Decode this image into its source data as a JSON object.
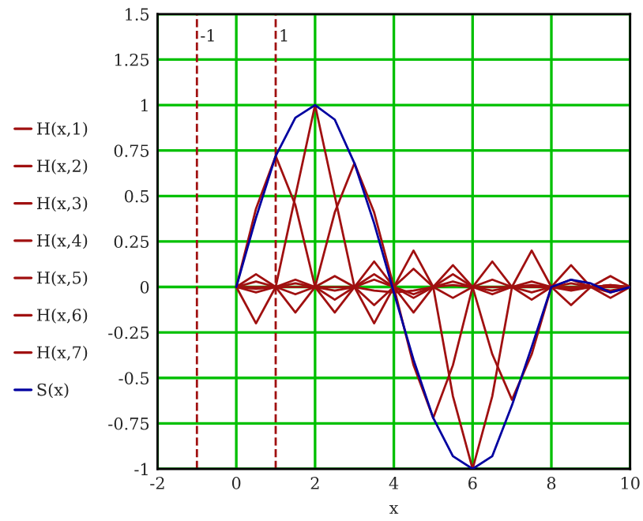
{
  "chart_data": {
    "type": "line",
    "xlabel": "x",
    "x": [
      0,
      0.5,
      1,
      1.5,
      2,
      2.5,
      3,
      3.5,
      4,
      4.5,
      5,
      5.5,
      6,
      6.5,
      7,
      7.5,
      8,
      8.5,
      9,
      9.5,
      10
    ],
    "series": [
      {
        "name": "H(x,1)",
        "color": "#a01010",
        "values": [
          0,
          0.43,
          0.72,
          0.45,
          0,
          -0.14,
          0,
          0.07,
          0,
          -0.04,
          0,
          0.03,
          0,
          -0.02,
          0,
          0.01,
          0,
          -0.01,
          0,
          0.01,
          0
        ]
      },
      {
        "name": "H(x,2)",
        "color": "#a01010",
        "values": [
          0,
          -0.2,
          0,
          0.5,
          1,
          0.5,
          0,
          -0.2,
          0,
          0.1,
          0,
          -0.06,
          0,
          0.04,
          0,
          -0.03,
          0,
          0.02,
          0,
          -0.02,
          0
        ]
      },
      {
        "name": "H(x,3)",
        "color": "#a01010",
        "values": [
          0,
          0.07,
          0,
          -0.14,
          0,
          0.41,
          0.68,
          0.41,
          0,
          -0.14,
          0,
          0.07,
          0,
          -0.04,
          0,
          0.03,
          0,
          -0.02,
          0,
          0.01,
          0
        ]
      },
      {
        "name": "H(x,4)",
        "color": "#a01010",
        "values": [
          0,
          0,
          0,
          0,
          0,
          0,
          0,
          -0.02,
          -0.03,
          -0.02,
          0,
          0.01,
          0,
          0,
          0,
          0,
          0,
          0,
          0,
          0,
          0
        ]
      },
      {
        "name": "H(x,5)",
        "color": "#a01010",
        "values": [
          0,
          -0.03,
          0,
          0.04,
          0,
          -0.07,
          0,
          0.14,
          0,
          -0.43,
          -0.72,
          -0.43,
          0,
          0.14,
          0,
          -0.07,
          0,
          0.04,
          0,
          -0.03,
          0
        ]
      },
      {
        "name": "H(x,6)",
        "color": "#a01010",
        "values": [
          0,
          0.03,
          0,
          -0.04,
          0,
          0.06,
          0,
          -0.1,
          0,
          0.2,
          0,
          -0.6,
          -1,
          -0.6,
          0,
          0.2,
          0,
          -0.1,
          0,
          0.06,
          0
        ]
      },
      {
        "name": "H(x,7)",
        "color": "#a01010",
        "values": [
          0,
          -0.01,
          0,
          0.02,
          0,
          -0.02,
          0,
          0.04,
          0,
          -0.06,
          0,
          0.12,
          0,
          -0.37,
          -0.62,
          -0.37,
          0,
          0.12,
          0,
          -0.06,
          0
        ]
      },
      {
        "name": "S(x)",
        "color": "#0000a0",
        "values": [
          0,
          0.38,
          0.72,
          0.93,
          1.0,
          0.92,
          0.68,
          0.35,
          -0.03,
          -0.4,
          -0.72,
          -0.93,
          -1.0,
          -0.93,
          -0.65,
          -0.33,
          0,
          0.04,
          0.02,
          -0.03,
          0
        ]
      }
    ],
    "xlim": [
      -2,
      10
    ],
    "xticks": [
      -2,
      0,
      2,
      4,
      6,
      8,
      10
    ],
    "ylim": [
      -1,
      1.5
    ],
    "yticks": [
      -1,
      -0.75,
      -0.5,
      -0.25,
      0,
      0.25,
      0.5,
      0.75,
      1,
      1.25,
      1.5
    ],
    "ref_lines": [
      {
        "axis": "x",
        "value": -1,
        "label": "-1",
        "color": "#a01010",
        "line_style": "dashed"
      },
      {
        "axis": "x",
        "value": 1,
        "label": "1",
        "color": "#a01010",
        "line_style": "dashed"
      }
    ],
    "grid": true,
    "legend": "left",
    "marker": "none",
    "line_style": "solid"
  }
}
